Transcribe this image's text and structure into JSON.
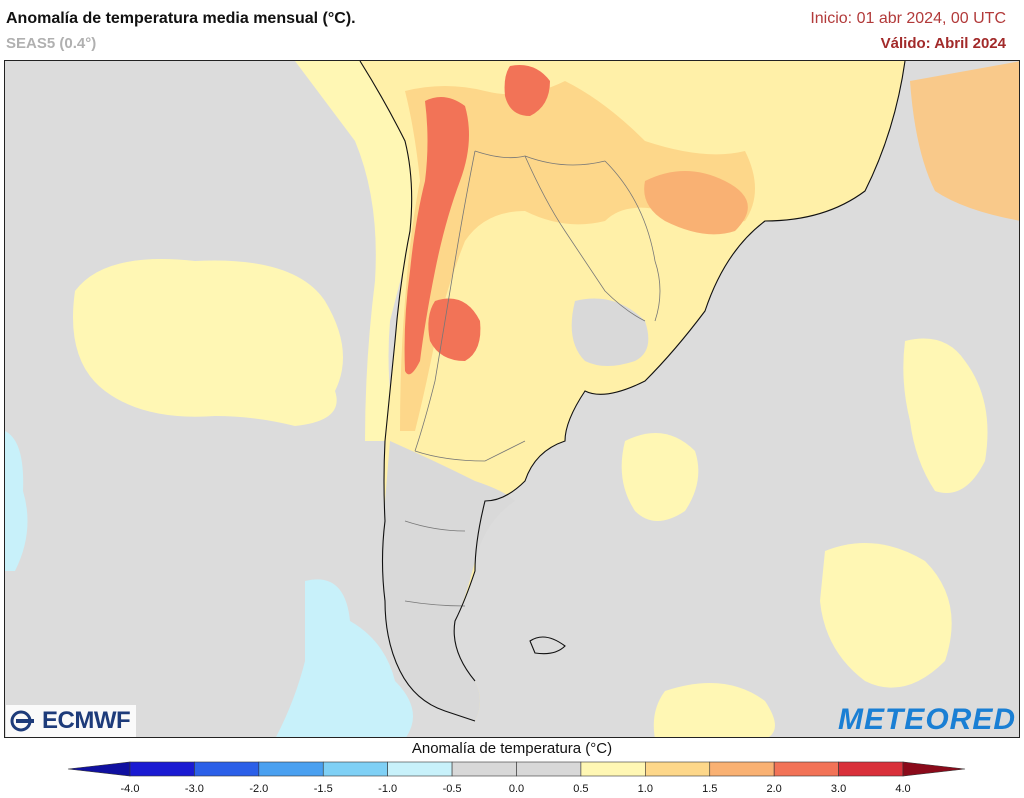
{
  "header": {
    "title": "Anomalía de temperatura media mensual (°C).",
    "model": "SEAS5 (0.4°)",
    "init": "Inicio: 01 abr 2024, 00 UTC",
    "valid": "Válido: Abril 2024"
  },
  "logos": {
    "left": "ECMWF",
    "right": "METEORED"
  },
  "legend": {
    "title": "Anomalía de temperatura (°C)",
    "ticks": [
      "-4.0",
      "-3.0",
      "-2.0",
      "-1.5",
      "-1.0",
      "-0.5",
      "0.0",
      "0.5",
      "1.0",
      "1.5",
      "2.0",
      "3.0",
      "4.0"
    ],
    "colors": [
      "#1a1ad2",
      "#2b5fe8",
      "#4aa0f0",
      "#7fd0f5",
      "#c8f1fa",
      "#d8d8d8",
      "#d8d8d8",
      "#fff7b4",
      "#fdd78a",
      "#f9b173",
      "#f27357",
      "#d9303a"
    ],
    "under_color": "#1010a0",
    "over_color": "#8a0a1a"
  },
  "map": {
    "background_color": "#dcdcdc",
    "land_color": "#d5d5d5",
    "border_color": "#888888"
  }
}
